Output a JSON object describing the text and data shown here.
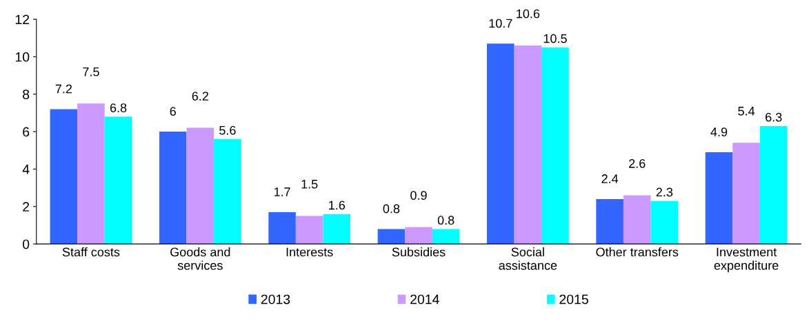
{
  "chart_data": {
    "type": "bar",
    "categories": [
      "Staff costs",
      "Goods and\nservices",
      "Interests",
      "Subsidies",
      "Social\nassistance",
      "Other transfers",
      "Investment\nexpenditure"
    ],
    "series": [
      {
        "name": "2013",
        "color": "#3366ff",
        "values": [
          7.2,
          6,
          1.7,
          0.8,
          10.7,
          2.4,
          4.9
        ]
      },
      {
        "name": "2014",
        "color": "#cc99ff",
        "values": [
          7.5,
          6.2,
          1.5,
          0.9,
          10.6,
          2.6,
          5.4
        ]
      },
      {
        "name": "2015",
        "color": "#00ffff",
        "values": [
          6.8,
          5.6,
          1.6,
          0.8,
          10.5,
          2.3,
          6.3
        ]
      }
    ],
    "ylim": [
      0,
      12
    ],
    "yticks": [
      0,
      2,
      4,
      6,
      8,
      10,
      12
    ],
    "data_labels": true,
    "legend": "bottom",
    "grid": false
  }
}
